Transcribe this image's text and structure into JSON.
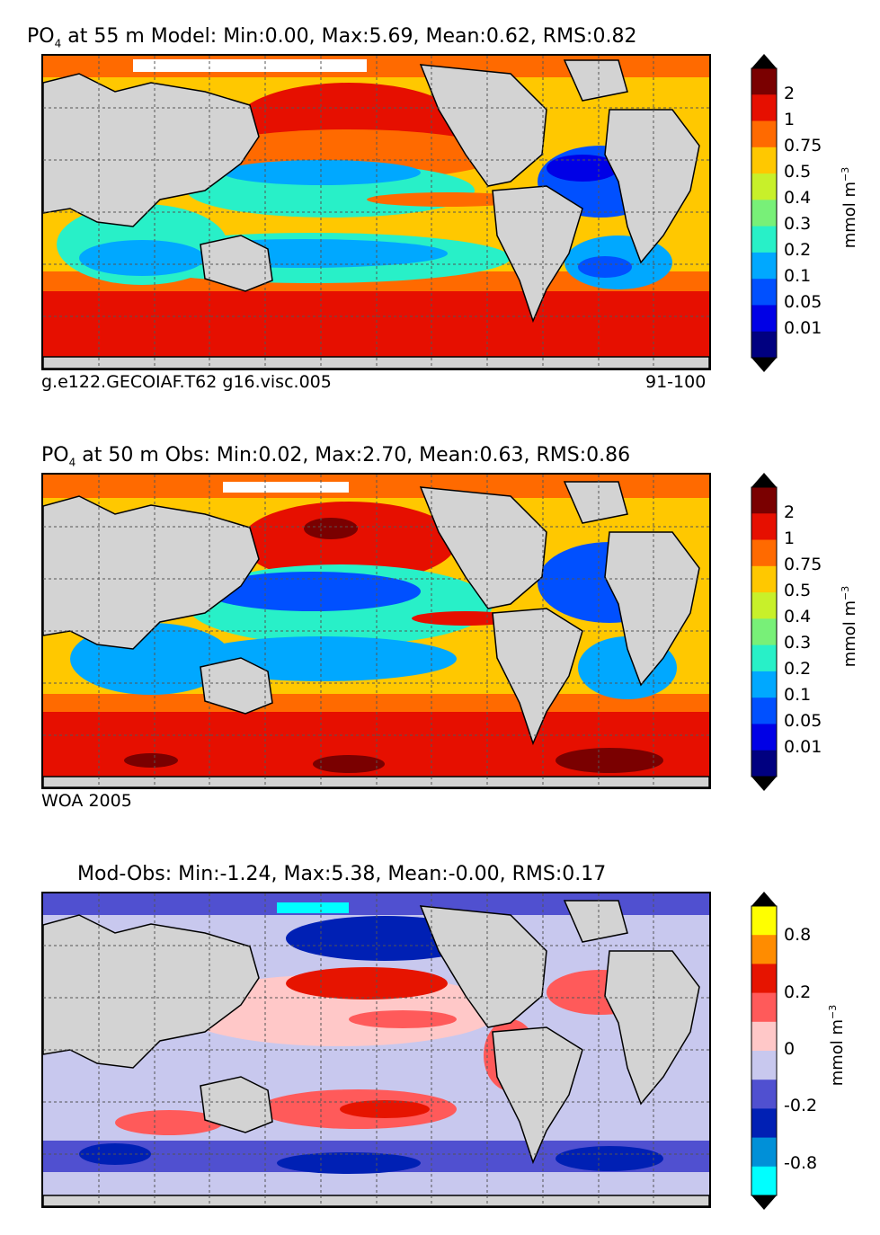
{
  "panels": [
    {
      "title_prefix": "PO",
      "title_sub": "4",
      "title_rest": " at 55 m Model: Min:0.00, Max:5.69, Mean:0.62, RMS:0.82",
      "caption_left": "g.e122.GECOIAF.T62 g16.visc.005",
      "caption_right": "91-100",
      "colorbar": {
        "label": "mmol m",
        "label_sup": "−3",
        "ticks": [
          "2",
          "1",
          "0.75",
          "0.5",
          "0.4",
          "0.3",
          "0.2",
          "0.1",
          "0.05",
          "0.01"
        ],
        "colors": [
          "#7a0000",
          "#e60f00",
          "#ff6a00",
          "#ffc800",
          "#c8f02a",
          "#78f078",
          "#28f0c8",
          "#00a8ff",
          "#0050ff",
          "#0000e6",
          "#000080"
        ]
      }
    },
    {
      "title_prefix": "PO",
      "title_sub": "4",
      "title_rest": " at 50 m Obs: Min:0.02, Max:2.70, Mean:0.63, RMS:0.86",
      "caption_left": "WOA 2005",
      "caption_right": "",
      "colorbar": {
        "label": "mmol m",
        "label_sup": "−3",
        "ticks": [
          "2",
          "1",
          "0.75",
          "0.5",
          "0.4",
          "0.3",
          "0.2",
          "0.1",
          "0.05",
          "0.01"
        ],
        "colors": [
          "#7a0000",
          "#e60f00",
          "#ff6a00",
          "#ffc800",
          "#c8f02a",
          "#78f078",
          "#28f0c8",
          "#00a8ff",
          "#0050ff",
          "#0000e6",
          "#000080"
        ]
      }
    },
    {
      "title_prefix": "",
      "title_sub": "",
      "title_rest": "Mod-Obs: Min:-1.24, Max:5.38, Mean:-0.00, RMS:0.17",
      "caption_left": "",
      "caption_right": "",
      "colorbar": {
        "label": "mmol m",
        "label_sup": "−3",
        "ticks": [
          "0.8",
          "0.2",
          "0",
          "-0.2",
          "-0.8"
        ],
        "colors": [
          "#ffff00",
          "#ff8c00",
          "#e61400",
          "#ff5a5a",
          "#ffc8c8",
          "#c8c8ee",
          "#5050d0",
          "#0020b4",
          "#0090d8",
          "#00ffff"
        ]
      }
    }
  ]
}
